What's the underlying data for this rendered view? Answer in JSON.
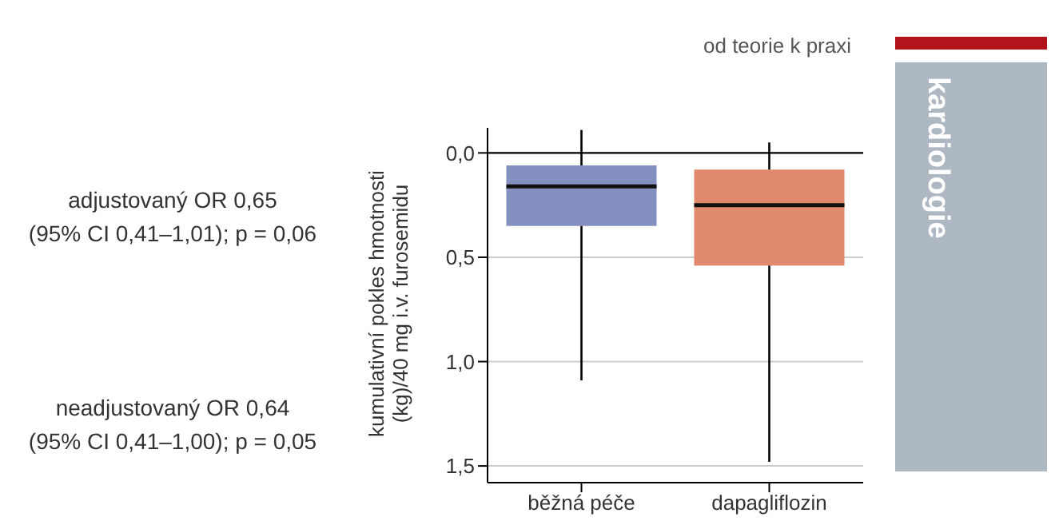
{
  "chart_data": {
    "type": "box",
    "ylabel": "kumulativní pokles hmotnosti (kg)/40 mg i.v. furosemidu",
    "categories": [
      "běžná péče",
      "dapagliflozin"
    ],
    "boxes": [
      {
        "low": -0.11,
        "q1": 0.06,
        "median": 0.16,
        "q3": 0.35,
        "high": 1.09
      },
      {
        "low": -0.05,
        "q1": 0.08,
        "median": 0.25,
        "q3": 0.54,
        "high": 1.48
      }
    ],
    "colors": [
      "#8490bf",
      "#e0896d"
    ],
    "ylim": [
      1.58,
      -0.12
    ],
    "yticks": [
      {
        "value": 0,
        "label": "0,0"
      },
      {
        "value": 0.5,
        "label": "0,5"
      },
      {
        "value": 1,
        "label": "1,0"
      },
      {
        "value": 1.5,
        "label": "1,5"
      }
    ],
    "grid": "y",
    "ref_lines": [
      {
        "axis": "y",
        "value": 0,
        "label": null,
        "color": "#000000"
      }
    ],
    "annotations": [
      "adjustovaný OR 0,65\n(95% CI 0,41–1,01); p = 0,06",
      "neadjustovaný OR 0,64\n(95% CI 0,41–1,00); p = 0,05",
      "od teorie k praxi",
      "kardiologie"
    ]
  }
}
